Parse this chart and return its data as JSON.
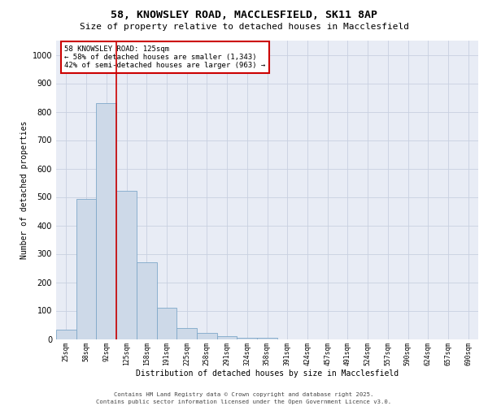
{
  "title_line1": "58, KNOWSLEY ROAD, MACCLESFIELD, SK11 8AP",
  "title_line2": "Size of property relative to detached houses in Macclesfield",
  "xlabel": "Distribution of detached houses by size in Macclesfield",
  "ylabel": "Number of detached properties",
  "categories": [
    "25sqm",
    "58sqm",
    "92sqm",
    "125sqm",
    "158sqm",
    "191sqm",
    "225sqm",
    "258sqm",
    "291sqm",
    "324sqm",
    "358sqm",
    "391sqm",
    "424sqm",
    "457sqm",
    "491sqm",
    "524sqm",
    "557sqm",
    "590sqm",
    "624sqm",
    "657sqm",
    "690sqm"
  ],
  "values": [
    33,
    493,
    830,
    521,
    271,
    109,
    40,
    21,
    10,
    5,
    5,
    0,
    0,
    0,
    0,
    0,
    0,
    0,
    0,
    0,
    0
  ],
  "bar_color": "#cdd9e8",
  "bar_edge_color": "#7fa8c9",
  "vline_color": "#cc0000",
  "vline_x_index": 3,
  "annotation_text": "58 KNOWSLEY ROAD: 125sqm\n← 58% of detached houses are smaller (1,343)\n42% of semi-detached houses are larger (963) →",
  "annotation_box_facecolor": "#ffffff",
  "annotation_box_edgecolor": "#cc0000",
  "grid_color": "#c8d0e0",
  "background_color": "#e8ecf5",
  "ylim_max": 1050,
  "yticks": [
    0,
    100,
    200,
    300,
    400,
    500,
    600,
    700,
    800,
    900,
    1000
  ],
  "footer_line1": "Contains HM Land Registry data © Crown copyright and database right 2025.",
  "footer_line2": "Contains public sector information licensed under the Open Government Licence v3.0."
}
